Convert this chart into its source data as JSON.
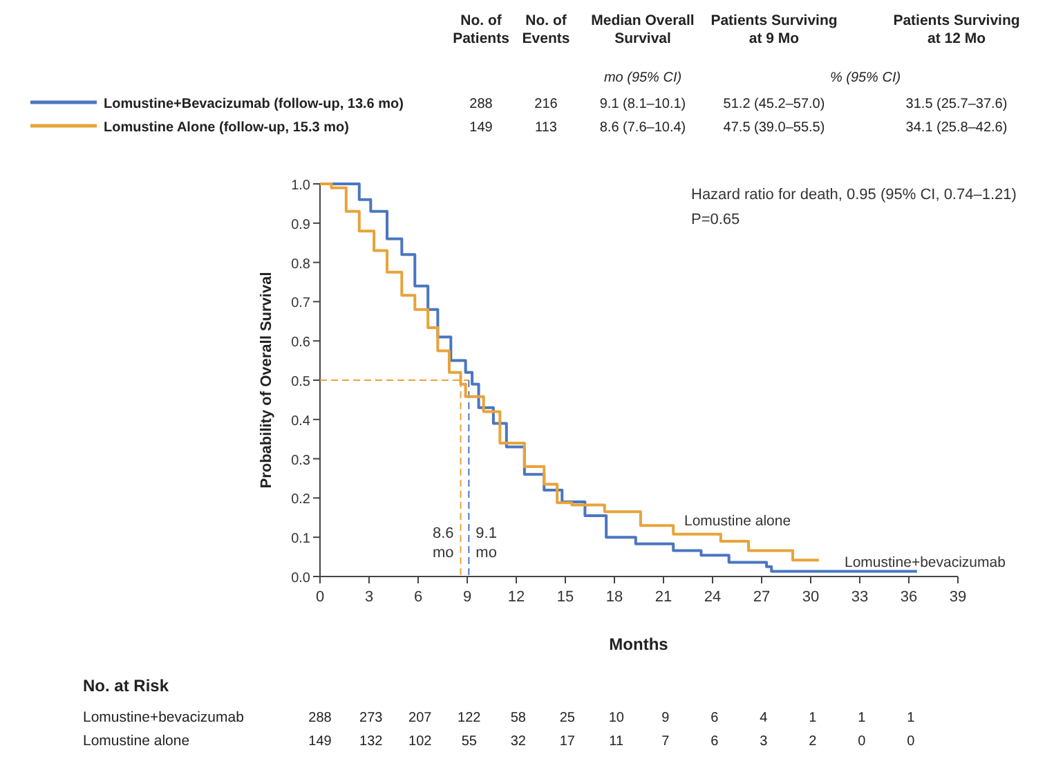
{
  "chart_data": {
    "type": "step",
    "xlabel": "Months",
    "ylabel": "Probability of Overall Survival",
    "xlim": [
      0,
      39
    ],
    "ylim": [
      0,
      1
    ],
    "xticks": [
      0,
      3,
      6,
      9,
      12,
      15,
      18,
      21,
      24,
      27,
      30,
      33,
      36,
      39
    ],
    "yticks": [
      {
        "value": 0,
        "label": "0.0"
      },
      {
        "value": 0.1,
        "label": "0.1"
      },
      {
        "value": 0.2,
        "label": "0.2"
      },
      {
        "value": 0.3,
        "label": "0.3"
      },
      {
        "value": 0.4,
        "label": "0.4"
      },
      {
        "value": 0.5,
        "label": "0.5"
      },
      {
        "value": 0.6,
        "label": "0.6"
      },
      {
        "value": 0.7,
        "label": "0.7"
      },
      {
        "value": 0.8,
        "label": "0.8"
      },
      {
        "value": 0.9,
        "label": "0.9"
      },
      {
        "value": 1,
        "label": "1.0"
      }
    ],
    "grid": false,
    "legend": "top",
    "line_style": "solid",
    "series": [
      {
        "name": "Lomustine+Bevacizumab (follow-up, 13.6 mo)",
        "color": "#4a76c0",
        "x": [
          0,
          1.0,
          2.4,
          3.1,
          4.1,
          5.0,
          5.8,
          6.6,
          7.2,
          8.0,
          8.9,
          9.3,
          9.7,
          10.6,
          11.4,
          12.5,
          13.7,
          14.8,
          16.2,
          17.5,
          19.3,
          21.6,
          23.3,
          25.0,
          27.3,
          27.6,
          36.5
        ],
        "values": [
          1,
          1,
          0.96,
          0.93,
          0.86,
          0.82,
          0.74,
          0.68,
          0.61,
          0.55,
          0.52,
          0.49,
          0.43,
          0.39,
          0.33,
          0.26,
          0.22,
          0.19,
          0.155,
          0.1,
          0.083,
          0.066,
          0.054,
          0.036,
          0.025,
          0.013,
          0.013
        ]
      },
      {
        "name": "Lomustine Alone (follow-up, 15.3 mo)",
        "color": "#e8a33a",
        "x": [
          0,
          0.4,
          0.7,
          1.6,
          2.4,
          3.3,
          4.1,
          5.0,
          5.8,
          6.6,
          7.2,
          7.9,
          8.6,
          8.9,
          10.0,
          11.0,
          12.5,
          13.7,
          14.5,
          15.4,
          17.4,
          19.6,
          21.6,
          24.5,
          26.2,
          28.9,
          30.5
        ],
        "values": [
          1,
          1,
          0.99,
          0.93,
          0.88,
          0.83,
          0.775,
          0.716,
          0.68,
          0.634,
          0.575,
          0.52,
          0.49,
          0.458,
          0.42,
          0.34,
          0.28,
          0.235,
          0.188,
          0.182,
          0.165,
          0.13,
          0.108,
          0.09,
          0.066,
          0.042,
          0.042
        ]
      }
    ],
    "ref_lines": [
      {
        "axis": "y",
        "value": 0.5,
        "color": "#e8a33a",
        "line_style": "dashed"
      },
      {
        "axis": "x",
        "value": 8.6,
        "label": "8.6\nmo",
        "color": "#e8a33a",
        "line_style": "dashed"
      },
      {
        "axis": "x",
        "value": 9.1,
        "label": "9.1\nmo",
        "color": "#4a76c0",
        "line_style": "dashed"
      }
    ],
    "annotations": [
      "Hazard ratio for death, 0.95 (95% CI, 0.74–1.21)",
      "P=0.65",
      "Lomustine alone",
      "Lomustine+bevacizumab",
      "No. of\nPatients",
      "No. of\nEvents",
      "Median Overall\nSurvival",
      "Patients Surviving\nat 9 Mo",
      "Patients Surviving\nat 12 Mo",
      "mo (95% CI)",
      "% (95% CI)",
      "288",
      "216",
      "9.1 (8.1–10.1)",
      "51.2 (45.2–57.0)",
      "31.5 (25.7–37.6)",
      "149",
      "113",
      "8.6 (7.6–10.4)",
      "47.5 (39.0–55.5)",
      "34.1 (25.8–42.6)",
      "No. at Risk",
      "Lomustine+bevacizumab",
      "Lomustine alone",
      "288 273 207 122 58 25 10 9 6 4 1 1 1",
      "149 132 102 55 32 17 11 7 6 3 2 0 0"
    ]
  }
}
